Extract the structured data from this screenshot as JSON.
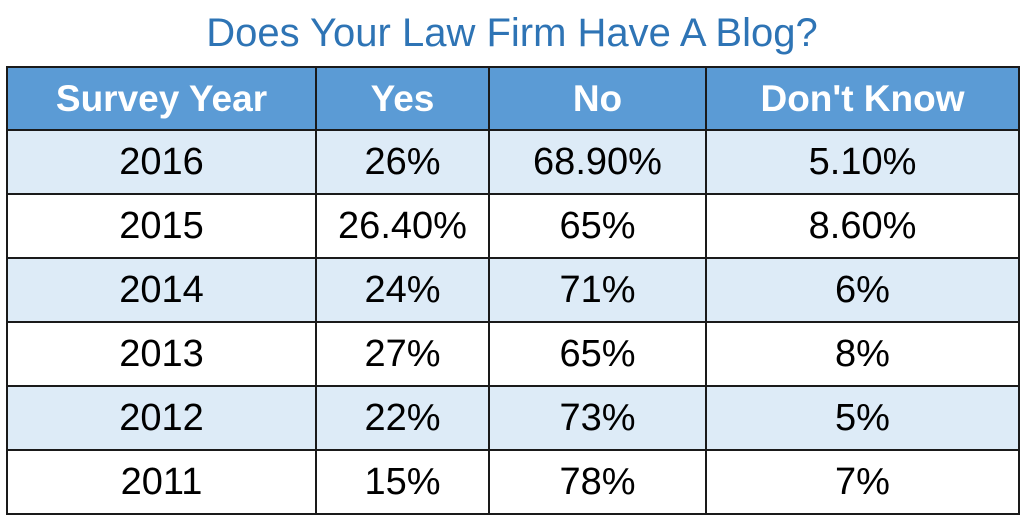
{
  "title": "Does Your Law Firm Have A Blog?",
  "colors": {
    "title": "#2e74b5",
    "header_fill": "#5b9bd5",
    "header_text": "#ffffff",
    "band_shade": "#ddebf7",
    "band_plain": "#ffffff",
    "border": "#1a1a1a"
  },
  "chart_data": {
    "type": "table",
    "title": "Does Your Law Firm Have A Blog?",
    "columns": [
      "Survey Year",
      "Yes",
      "No",
      "Don't Know"
    ],
    "rows": [
      [
        "2016",
        "26%",
        "68.90%",
        "5.10%"
      ],
      [
        "2015",
        "26.40%",
        "65%",
        "8.60%"
      ],
      [
        "2014",
        "24%",
        "71%",
        "6%"
      ],
      [
        "2013",
        "27%",
        "65%",
        "8%"
      ],
      [
        "2012",
        "22%",
        "73%",
        "5%"
      ],
      [
        "2011",
        "15%",
        "78%",
        "7%"
      ]
    ]
  }
}
